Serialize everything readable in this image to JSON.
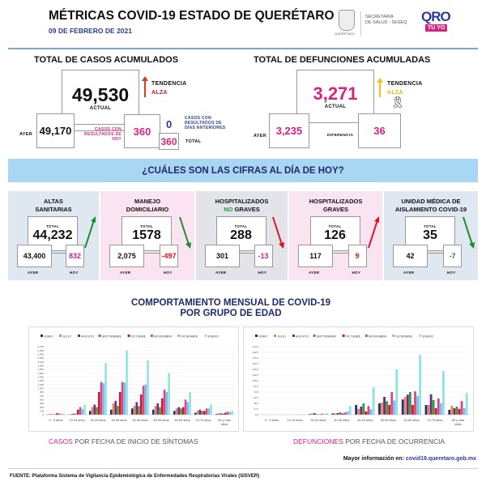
{
  "header": {
    "title": "MÉTRICAS COVID-19 ESTADO DE QUERÉTARO",
    "date": "09 DE FEBRERO DE 2021",
    "seal_caption": "QUERÉTARO",
    "secretaria_line1": "SECRETARÍA",
    "secretaria_line2": "DE SALUD - SESEQ",
    "logo_main": "QRO",
    "logo_sub": "TÚ YO"
  },
  "casos": {
    "title": "TOTAL DE CASOS ACUMULADOS",
    "actual": "49,530",
    "actual_label": "ACTUAL",
    "trend_label": "TENDENCIA",
    "trend_value": "ALZA",
    "ayer_label": "AYER",
    "ayer": "49,170",
    "hoy_label": "CASOS CON RESULTADOS DE HOY",
    "hoy": "360",
    "anteriores": "0",
    "anteriores_label": "CASOS CON RESULTADOS DE DÍAS ANTERIORES",
    "total": "360",
    "total_label": "TOTAL"
  },
  "defunciones": {
    "title": "TOTAL DE DEFUNCIONES ACUMULADAS",
    "actual": "3,271",
    "actual_label": "ACTUAL",
    "trend_label": "TENDENCIA",
    "trend_value": "ALZA",
    "ayer_label": "AYER",
    "ayer": "3,235",
    "diff_label": "DIFERENCIA",
    "diff": "36"
  },
  "banner": "¿CUÁLES SON LAS CIFRAS AL DÍA DE HOY?",
  "panels": [
    {
      "title1": "ALTAS",
      "title2": "SANITARIAS",
      "total_label": "TOTAL",
      "total": "44,232",
      "ayer": "43,400",
      "hoy": "832",
      "ayer_label": "AYER",
      "hoy_label": "HOY",
      "hoy_color": "#c0269b",
      "trend": "up",
      "trend_color": "#1e8a2e",
      "bg": "#dfe7f1"
    },
    {
      "title1": "MANEJO",
      "title2": "DOMICILIARIO",
      "total_label": "TOTAL",
      "total": "1578",
      "ayer": "2,075",
      "hoy": "-497",
      "ayer_label": "AYER",
      "hoy_label": "HOY",
      "hoy_color": "#e01020",
      "trend": "down",
      "trend_color": "#1e8a2e",
      "bg": "#fbe4f2"
    },
    {
      "title1": "HOSPITALIZADOS",
      "title2a": "NO",
      "title2b": " GRAVES",
      "total_label": "TOTAL",
      "total": "288",
      "ayer": "301",
      "hoy": "-13",
      "ayer_label": "AYER",
      "hoy_label": "HOY",
      "hoy_color": "#d6247f",
      "trend": "down",
      "trend_color": "#e01020",
      "bg": "#e2e4e9"
    },
    {
      "title1": "HOSPITALIZADOS",
      "title2": "GRAVES",
      "total_label": "TOTAL",
      "total": "126",
      "ayer": "117",
      "hoy": "9",
      "ayer_label": "AYER",
      "hoy_label": "HOY",
      "hoy_color": "#e01020",
      "trend": "up",
      "trend_color": "#e01020",
      "bg": "#fbe4f2"
    },
    {
      "title1": "UNIDAD MÉDICA DE",
      "title2": "AISLAMIENTO COVID-19",
      "total_label": "TOTAL",
      "total": "35",
      "ayer": "42",
      "hoy": "-7",
      "ayer_label": "AYER",
      "hoy_label": "HOY",
      "hoy_color": "#1e8a2e",
      "trend": "down",
      "trend_color": "#1e8a2e",
      "bg": "#dfe7f1"
    }
  ],
  "charts_title1": "COMPORTAMIENTO MENSUAL DE COVID-19",
  "charts_title2": "POR GRUPO DE EDAD",
  "chart_data": [
    {
      "type": "bar",
      "categories": [
        "0 - 9 años",
        "10-19 años",
        "20-29 años",
        "30-39 años",
        "40-49 años",
        "50-59 años",
        "60-69 años",
        "70-79 años",
        "80 y mas años"
      ],
      "ylim": [
        0,
        2700
      ],
      "ytick_step": 150,
      "legend": "top",
      "grid": true,
      "series": [
        {
          "name": "JUNIO",
          "color": "#1f2f7a",
          "values": [
            10,
            10,
            150,
            200,
            250,
            200,
            150,
            80,
            30
          ]
        },
        {
          "name": "JULIO",
          "color": "#e8874a",
          "values": [
            30,
            30,
            300,
            450,
            350,
            350,
            250,
            150,
            60
          ]
        },
        {
          "name": "AGOSTO",
          "color": "#6b2a8c",
          "values": [
            20,
            40,
            400,
            550,
            500,
            450,
            300,
            200,
            50
          ]
        },
        {
          "name": "SEPTIEMBRE",
          "color": "#3a9a3a",
          "values": [
            20,
            40,
            300,
            350,
            350,
            300,
            250,
            150,
            50
          ]
        },
        {
          "name": "OCTUBRE",
          "color": "#e01020",
          "values": [
            60,
            200,
            900,
            900,
            800,
            650,
            300,
            150,
            80
          ]
        },
        {
          "name": "NOVIEMBRE",
          "color": "#d9468f",
          "values": [
            50,
            300,
            1300,
            1300,
            1150,
            1000,
            600,
            250,
            120
          ]
        },
        {
          "name": "DICIEMBRE",
          "color": "#7fbde8",
          "values": [
            40,
            230,
            1250,
            1280,
            1200,
            900,
            500,
            250,
            100
          ]
        },
        {
          "name": "ENERO",
          "color": "#8de3e0",
          "values": [
            40,
            400,
            2050,
            2550,
            2150,
            1650,
            900,
            400,
            160
          ]
        }
      ],
      "caption_highlight": "CASOS",
      "caption_rest": " POR FECHA DE INICIO DE SÍNTOMAS"
    },
    {
      "type": "bar",
      "categories": [
        "0 - 9 años",
        "10-19 años",
        "20-29 años",
        "30-39 años",
        "40-49 años",
        "50-59 años",
        "60-69 años",
        "70-79 años",
        "80 y más años"
      ],
      "ylim": [
        0,
        210
      ],
      "ytick_step": 17.5,
      "legend": "top",
      "grid": true,
      "series": [
        {
          "name": "JUNIO",
          "color": "#1f2f7a",
          "values": [
            0,
            0,
            2,
            4,
            30,
            35,
            47,
            30,
            15
          ]
        },
        {
          "name": "JULIO",
          "color": "#e8874a",
          "values": [
            0,
            0,
            4,
            4,
            18,
            38,
            55,
            30,
            28
          ]
        },
        {
          "name": "AGOSTO",
          "color": "#6b2a8c",
          "values": [
            0,
            0,
            5,
            5,
            25,
            55,
            62,
            63,
            20
          ]
        },
        {
          "name": "SEPTIEMBRE",
          "color": "#3a9a3a",
          "values": [
            0,
            0,
            2,
            7,
            35,
            42,
            70,
            45,
            25
          ]
        },
        {
          "name": "OCTUBRE",
          "color": "#e01020",
          "values": [
            0,
            0,
            1,
            4,
            10,
            30,
            30,
            20,
            18
          ]
        },
        {
          "name": "NOVIEMBRE",
          "color": "#d9468f",
          "values": [
            0,
            1,
            3,
            7,
            27,
            70,
            72,
            50,
            42
          ]
        },
        {
          "name": "DICIEMBRE",
          "color": "#7fbde8",
          "values": [
            0,
            0,
            2,
            10,
            17,
            44,
            58,
            35,
            20
          ]
        },
        {
          "name": "ENERO",
          "color": "#8de3e0",
          "values": [
            0,
            0,
            5,
            27,
            85,
            140,
            185,
            135,
            67
          ]
        }
      ],
      "caption_highlight": "DEFUNCIONES",
      "caption_rest": " POR FECHA DE OCURRENCIA"
    }
  ],
  "footer": {
    "more_label": "Mayor información en: ",
    "more_link": "covid19.queretaro.gob.mx",
    "source": "FUENTE: Plataforma Sistema  de Vigilancia Epidemiológica de Enfermedades Respiratorias Virales (SISVER)"
  }
}
